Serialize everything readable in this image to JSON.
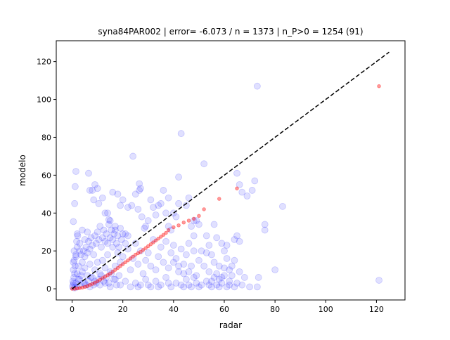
{
  "chart_data": {
    "type": "scatter",
    "title": "syna84PAR002 | error= -6.073 / n = 1373 | n_P>0 = 1254 (91)",
    "xlabel": "radar",
    "ylabel": "modelo",
    "xlim": [
      -6.25,
      131.25
    ],
    "ylim": [
      -5.9,
      131.0
    ],
    "xticks": [
      0,
      20,
      40,
      60,
      80,
      100,
      120
    ],
    "yticks": [
      0,
      20,
      40,
      60,
      80,
      100,
      120
    ],
    "grid": false,
    "legend": "none",
    "colors": {
      "points": "#0000ff",
      "quantile": "#ff0000",
      "reference": "#000000"
    },
    "series": [
      {
        "style": "blue-transparent-circles",
        "points": [
          [
            0.5,
            35.5
          ],
          [
            0.8,
            20
          ],
          [
            1.2,
            54
          ],
          [
            1.5,
            62
          ],
          [
            1,
            45
          ],
          [
            2,
            29
          ],
          [
            3,
            24
          ],
          [
            1.5,
            17
          ],
          [
            0.5,
            14
          ],
          [
            2.5,
            12
          ],
          [
            4,
            31
          ],
          [
            5,
            26
          ],
          [
            6,
            30
          ],
          [
            6.5,
            61
          ],
          [
            7,
            52
          ],
          [
            8,
            52
          ],
          [
            8.5,
            47
          ],
          [
            9,
            55
          ],
          [
            10,
            53
          ],
          [
            10.5,
            45
          ],
          [
            12,
            48
          ],
          [
            13,
            40
          ],
          [
            14,
            40
          ],
          [
            14.5,
            36.5
          ],
          [
            15,
            36
          ],
          [
            16,
            51
          ],
          [
            17,
            31
          ],
          [
            18,
            50
          ],
          [
            19,
            44
          ],
          [
            20,
            47
          ],
          [
            21,
            29
          ],
          [
            22,
            43
          ],
          [
            23.5,
            44
          ],
          [
            24,
            70
          ],
          [
            25,
            50
          ],
          [
            26,
            42
          ],
          [
            26.5,
            52
          ],
          [
            26.5,
            55.5
          ],
          [
            27,
            53
          ],
          [
            27.5,
            38
          ],
          [
            28.5,
            32
          ],
          [
            29,
            33
          ],
          [
            30,
            36
          ],
          [
            31,
            47
          ],
          [
            32,
            43
          ],
          [
            33,
            39
          ],
          [
            34,
            44
          ],
          [
            35,
            45
          ],
          [
            36,
            52
          ],
          [
            37,
            40
          ],
          [
            38,
            48
          ],
          [
            38,
            33
          ],
          [
            39,
            31
          ],
          [
            40,
            40
          ],
          [
            41,
            38
          ],
          [
            42,
            59
          ],
          [
            42,
            45
          ],
          [
            43,
            82
          ],
          [
            45,
            44
          ],
          [
            46,
            48
          ],
          [
            47,
            33
          ],
          [
            48,
            28
          ],
          [
            48,
            36
          ],
          [
            49,
            36
          ],
          [
            50,
            34
          ],
          [
            51,
            20
          ],
          [
            52,
            66
          ],
          [
            53,
            28
          ],
          [
            54,
            23
          ],
          [
            55,
            18
          ],
          [
            56,
            34
          ],
          [
            57,
            27
          ],
          [
            58,
            12
          ],
          [
            59,
            24
          ],
          [
            59,
            6
          ],
          [
            60,
            20
          ],
          [
            61,
            23
          ],
          [
            61,
            16
          ],
          [
            62,
            10
          ],
          [
            63,
            12
          ],
          [
            64,
            15
          ],
          [
            64,
            26
          ],
          [
            65,
            61
          ],
          [
            65,
            28
          ],
          [
            65,
            3
          ],
          [
            66,
            25
          ],
          [
            66,
            55
          ],
          [
            67,
            51
          ],
          [
            69,
            49
          ],
          [
            71,
            52
          ],
          [
            72,
            57
          ],
          [
            73,
            107
          ],
          [
            73,
            1
          ],
          [
            73.5,
            6
          ],
          [
            76,
            34
          ],
          [
            76,
            31
          ],
          [
            80,
            10
          ],
          [
            83,
            43.5
          ],
          [
            121,
            4.5
          ],
          [
            2,
            8
          ],
          [
            3,
            5
          ],
          [
            4,
            9
          ],
          [
            5,
            11
          ],
          [
            6,
            7
          ],
          [
            7,
            13
          ],
          [
            8,
            6
          ],
          [
            9,
            10
          ],
          [
            10,
            14
          ],
          [
            11,
            8
          ],
          [
            12,
            15
          ],
          [
            13,
            11
          ],
          [
            14,
            18
          ],
          [
            15,
            9
          ],
          [
            16,
            22
          ],
          [
            17,
            12
          ],
          [
            18,
            19
          ],
          [
            19,
            14
          ],
          [
            20,
            17
          ],
          [
            22,
            21
          ],
          [
            23,
            10
          ],
          [
            24,
            16
          ],
          [
            25,
            24
          ],
          [
            26,
            13
          ],
          [
            27,
            20
          ],
          [
            28,
            8
          ],
          [
            29,
            15
          ],
          [
            30,
            19
          ],
          [
            31,
            12
          ],
          [
            32,
            26
          ],
          [
            33,
            10
          ],
          [
            34,
            17
          ],
          [
            35,
            22
          ],
          [
            36,
            14
          ],
          [
            37,
            25
          ],
          [
            38,
            11
          ],
          [
            39,
            19
          ],
          [
            40,
            23
          ],
          [
            41,
            16
          ],
          [
            42,
            9
          ],
          [
            43,
            21
          ],
          [
            44,
            13
          ],
          [
            45,
            18
          ],
          [
            46,
            24
          ],
          [
            47,
            12
          ],
          [
            48,
            20
          ],
          [
            49,
            7
          ],
          [
            50,
            15
          ],
          [
            52,
            12
          ],
          [
            53,
            19
          ],
          [
            54,
            9
          ],
          [
            55,
            4
          ],
          [
            56,
            14
          ],
          [
            57,
            8
          ],
          [
            58,
            5
          ],
          [
            60,
            11
          ],
          [
            62,
            4
          ],
          [
            63,
            7
          ],
          [
            66,
            9
          ],
          [
            68,
            6
          ],
          [
            3,
            2
          ],
          [
            5,
            3
          ],
          [
            7,
            1
          ],
          [
            9,
            4
          ],
          [
            11,
            2
          ],
          [
            13,
            3
          ],
          [
            15,
            1
          ],
          [
            17,
            5
          ],
          [
            19,
            2
          ],
          [
            21,
            4
          ],
          [
            23,
            1
          ],
          [
            25,
            3
          ],
          [
            27,
            2
          ],
          [
            29,
            5
          ],
          [
            31,
            1
          ],
          [
            33,
            4
          ],
          [
            35,
            2
          ],
          [
            37,
            6
          ],
          [
            39,
            1
          ],
          [
            41,
            3
          ],
          [
            43,
            2
          ],
          [
            45,
            5
          ],
          [
            47,
            1
          ],
          [
            49,
            3
          ],
          [
            51,
            2
          ],
          [
            53,
            4
          ],
          [
            55,
            1
          ],
          [
            57,
            2
          ],
          [
            59,
            3
          ],
          [
            61,
            1
          ],
          [
            1,
            0.5
          ],
          [
            2,
            1
          ],
          [
            1.5,
            3
          ],
          [
            2.5,
            5
          ],
          [
            3.5,
            7
          ],
          [
            4.5,
            3
          ],
          [
            5.5,
            2
          ],
          [
            6.5,
            4
          ],
          [
            7.5,
            6
          ],
          [
            8.5,
            2
          ],
          [
            9.5,
            3
          ],
          [
            10.5,
            5
          ],
          [
            11.5,
            7
          ],
          [
            12.5,
            4
          ],
          [
            13.5,
            6
          ],
          [
            14.5,
            3
          ],
          [
            15.5,
            8
          ],
          [
            16.5,
            5
          ],
          [
            17.5,
            2
          ],
          [
            18.5,
            7
          ],
          [
            0.2,
            1
          ],
          [
            0.4,
            2
          ],
          [
            0.6,
            3
          ],
          [
            0.3,
            4
          ],
          [
            0.7,
            6
          ],
          [
            1,
            8
          ],
          [
            0.5,
            10
          ],
          [
            1.2,
            12
          ],
          [
            0.8,
            15
          ],
          [
            1.5,
            18
          ],
          [
            2,
            22
          ],
          [
            1.8,
            25
          ],
          [
            2.2,
            28
          ],
          [
            3,
            20
          ],
          [
            3.5,
            18
          ],
          [
            4,
            14
          ],
          [
            4.5,
            20
          ],
          [
            5,
            17
          ],
          [
            5.5,
            22
          ],
          [
            6,
            19
          ],
          [
            6.5,
            25
          ],
          [
            7,
            21
          ],
          [
            7.5,
            27
          ],
          [
            8,
            23
          ],
          [
            8.5,
            18
          ],
          [
            9,
            28
          ],
          [
            9.5,
            24
          ],
          [
            10,
            30
          ],
          [
            10.5,
            26
          ],
          [
            11,
            33
          ],
          [
            11.5,
            22
          ],
          [
            12,
            27
          ],
          [
            12.5,
            31
          ],
          [
            13,
            25
          ],
          [
            13.5,
            29
          ],
          [
            14,
            24
          ],
          [
            14.5,
            34
          ],
          [
            15,
            27
          ],
          [
            15.5,
            31
          ],
          [
            16,
            26
          ],
          [
            16.5,
            29
          ],
          [
            17,
            33
          ],
          [
            17.5,
            24
          ],
          [
            18,
            28
          ],
          [
            18.5,
            22
          ],
          [
            19,
            32
          ],
          [
            19.5,
            26
          ],
          [
            20,
            29
          ],
          [
            21,
            24
          ],
          [
            22,
            28
          ],
          [
            26,
            1
          ],
          [
            30,
            2
          ],
          [
            34,
            1
          ],
          [
            38,
            3
          ],
          [
            44,
            1
          ],
          [
            46,
            2
          ],
          [
            50,
            1
          ],
          [
            54,
            2
          ],
          [
            58,
            1
          ],
          [
            62,
            2
          ],
          [
            64,
            1
          ],
          [
            67,
            2
          ],
          [
            70,
            1
          ],
          [
            56,
            6
          ],
          [
            60,
            7
          ],
          [
            48,
            6
          ],
          [
            46,
            9
          ],
          [
            44,
            8
          ],
          [
            42,
            12
          ],
          [
            40,
            14
          ]
        ]
      },
      {
        "style": "red-quantile-dots",
        "points": [
          [
            0,
            0
          ],
          [
            1,
            0
          ],
          [
            2,
            0.2
          ],
          [
            3,
            0.4
          ],
          [
            4,
            0.6
          ],
          [
            5,
            1
          ],
          [
            6,
            1.4
          ],
          [
            7,
            2
          ],
          [
            8,
            2.6
          ],
          [
            9,
            3.2
          ],
          [
            10,
            4
          ],
          [
            11,
            4.8
          ],
          [
            12,
            5.6
          ],
          [
            13,
            6.4
          ],
          [
            14,
            7.2
          ],
          [
            15,
            8
          ],
          [
            16,
            9
          ],
          [
            17,
            10
          ],
          [
            18,
            11
          ],
          [
            19,
            12
          ],
          [
            20,
            13
          ],
          [
            21,
            14
          ],
          [
            22,
            15
          ],
          [
            23,
            16
          ],
          [
            24,
            17
          ],
          [
            25,
            18
          ],
          [
            26,
            18.8
          ],
          [
            27,
            19.5
          ],
          [
            28,
            20.5
          ],
          [
            29,
            21.5
          ],
          [
            30,
            22.5
          ],
          [
            31,
            23.5
          ],
          [
            32,
            24.5
          ],
          [
            33,
            25.5
          ],
          [
            34,
            26.5
          ],
          [
            35,
            27.5
          ],
          [
            36,
            28.5
          ],
          [
            37,
            29.5
          ],
          [
            38,
            31
          ],
          [
            40,
            32.5
          ],
          [
            42,
            33.5
          ],
          [
            44,
            35
          ],
          [
            46,
            36
          ],
          [
            48,
            37
          ],
          [
            50,
            38.5
          ],
          [
            52,
            42
          ],
          [
            58,
            47.5
          ],
          [
            65,
            53
          ],
          [
            121,
            107
          ]
        ]
      },
      {
        "style": "black-dashed-reference-line",
        "x": [
          0,
          125
        ],
        "y": [
          0,
          125
        ]
      }
    ]
  }
}
